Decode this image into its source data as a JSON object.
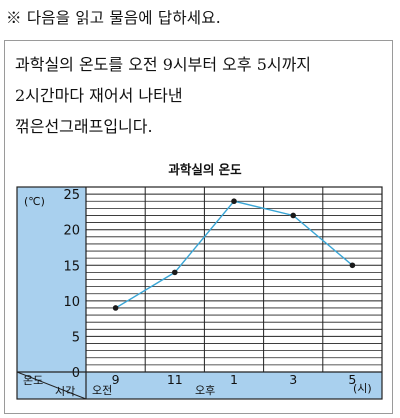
{
  "instruction": "※ 다음을 읽고 물음에 답하세요.",
  "description": {
    "lines": [
      "과학실의 온도를 오전 9시부터 오후 5시까지",
      "2시간마다 재어서 나타낸",
      "꺾은선그래프입니다."
    ]
  },
  "chart_data": {
    "type": "line",
    "title": "과학실의 온도",
    "ylabel": "온도",
    "yunit": "(℃)",
    "xlabel": "시각",
    "xunit": "(시)",
    "x": [
      "9",
      "11",
      "1",
      "3",
      "5"
    ],
    "x_periods": [
      "오전",
      "오후"
    ],
    "series": [
      {
        "values": [
          9,
          14,
          24,
          22,
          15
        ]
      }
    ],
    "ylim": [
      0,
      26
    ],
    "yticks": [
      0,
      5,
      10,
      15,
      20,
      25
    ],
    "grid": true,
    "colors": {
      "line": "#3aa6d6",
      "marker": "#1a1a1a",
      "panel": "#a9d0ee",
      "grid": "#222222"
    }
  }
}
